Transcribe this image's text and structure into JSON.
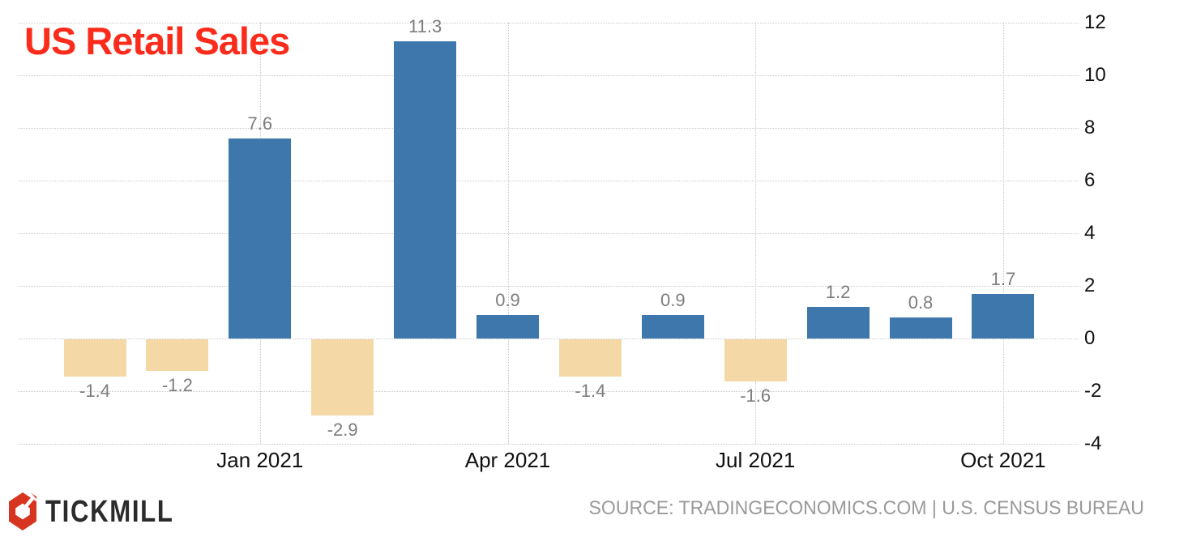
{
  "title": {
    "text": "US Retail Sales"
  },
  "chart_data": {
    "type": "bar",
    "title": "US Retail Sales",
    "values": [
      -1.4,
      -1.2,
      7.6,
      -2.9,
      11.3,
      0.9,
      -1.4,
      0.9,
      -1.6,
      1.2,
      0.8,
      1.7
    ],
    "x_ticks": [
      {
        "bar_index": 2,
        "label": "Jan 2021"
      },
      {
        "bar_index": 5,
        "label": "Apr 2021"
      },
      {
        "bar_index": 8,
        "label": "Jul 2021"
      },
      {
        "bar_index": 11,
        "label": "Oct 2021"
      }
    ],
    "y_ticks": [
      12,
      10,
      8,
      6,
      4,
      2,
      0,
      -2,
      -4
    ],
    "ylim": [
      -4,
      12
    ],
    "y_axis_side": "right",
    "grid": "dotted",
    "legend": "none",
    "colors": {
      "positive_bar": "#3d77ab",
      "negative_bar": "#f4d9a7",
      "title": "#fb2c1c",
      "value_label": "#7d7d7d",
      "axis_label": "#111111",
      "gridline": "#c9c9c9"
    }
  },
  "footer": {
    "brand": "TICKMILL",
    "source_text": "SOURCE: TRADINGECONOMICS.COM | U.S. CENSUS BUREAU",
    "colors": {
      "logo_red": "#d7351f",
      "brand_text": "#2b2b2b",
      "source_text": "#9a9a9a"
    }
  }
}
